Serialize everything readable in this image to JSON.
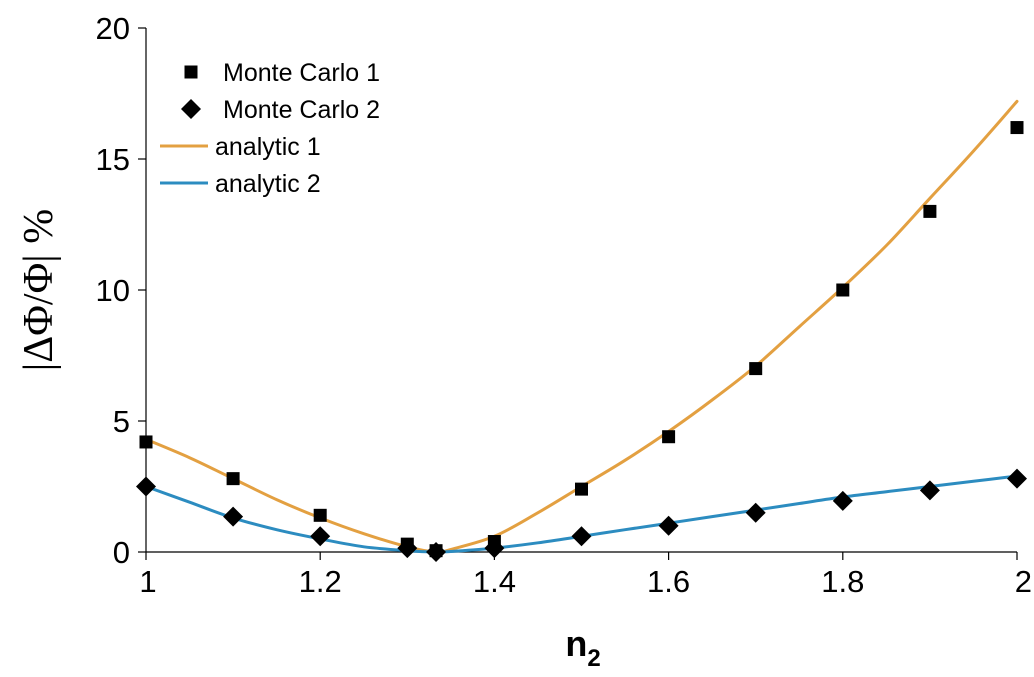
{
  "chart_data": {
    "type": "scatter",
    "title": "",
    "xlabel": "n",
    "xlabel_sub": "2",
    "ylabel": "|ΔΦ/Φ| %",
    "xlim": [
      1,
      2
    ],
    "ylim": [
      0,
      20
    ],
    "xticks": [
      1,
      1.2,
      1.4,
      1.6,
      1.8,
      2
    ],
    "yticks": [
      0,
      5,
      10,
      15,
      20
    ],
    "xtick_labels": [
      "1",
      "1.2",
      "1.4",
      "1.6",
      "1.8",
      "2"
    ],
    "ytick_labels": [
      "0",
      "5",
      "10",
      "15",
      "20"
    ],
    "grid": false,
    "legend_position": "top-left",
    "series": [
      {
        "name": "Monte Carlo 1",
        "kind": "marker",
        "marker": "square",
        "color": "#000000",
        "x": [
          1.0,
          1.1,
          1.2,
          1.3,
          1.333,
          1.4,
          1.5,
          1.6,
          1.7,
          1.8,
          1.9,
          2.0
        ],
        "y": [
          4.2,
          2.8,
          1.4,
          0.3,
          0.05,
          0.4,
          2.4,
          4.4,
          7.0,
          10.0,
          13.0,
          16.2
        ]
      },
      {
        "name": "Monte Carlo 2",
        "kind": "marker",
        "marker": "diamond",
        "color": "#000000",
        "x": [
          1.0,
          1.1,
          1.2,
          1.3,
          1.333,
          1.4,
          1.5,
          1.6,
          1.7,
          1.8,
          1.9,
          2.0
        ],
        "y": [
          2.5,
          1.35,
          0.6,
          0.15,
          0.0,
          0.15,
          0.6,
          1.0,
          1.5,
          1.95,
          2.35,
          2.8
        ]
      },
      {
        "name": "analytic 1",
        "kind": "line",
        "color": "#E3A041",
        "x": [
          1.0,
          1.05,
          1.1,
          1.15,
          1.2,
          1.25,
          1.3,
          1.333,
          1.35,
          1.4,
          1.45,
          1.5,
          1.55,
          1.6,
          1.65,
          1.7,
          1.75,
          1.8,
          1.85,
          1.9,
          1.95,
          2.0
        ],
        "y": [
          4.3,
          3.6,
          2.8,
          2.0,
          1.3,
          0.7,
          0.2,
          0.0,
          0.1,
          0.6,
          1.5,
          2.5,
          3.5,
          4.6,
          5.8,
          7.1,
          8.6,
          10.1,
          11.7,
          13.5,
          15.3,
          17.2
        ]
      },
      {
        "name": "analytic 2",
        "kind": "line",
        "color": "#2C8CC0",
        "x": [
          1.0,
          1.05,
          1.1,
          1.15,
          1.2,
          1.25,
          1.3,
          1.333,
          1.35,
          1.4,
          1.45,
          1.5,
          1.55,
          1.6,
          1.65,
          1.7,
          1.75,
          1.8,
          1.85,
          1.9,
          1.95,
          2.0
        ],
        "y": [
          2.5,
          1.9,
          1.3,
          0.85,
          0.5,
          0.2,
          0.05,
          0.0,
          0.02,
          0.15,
          0.35,
          0.6,
          0.85,
          1.1,
          1.35,
          1.6,
          1.85,
          2.1,
          2.3,
          2.5,
          2.7,
          2.9
        ]
      }
    ]
  }
}
